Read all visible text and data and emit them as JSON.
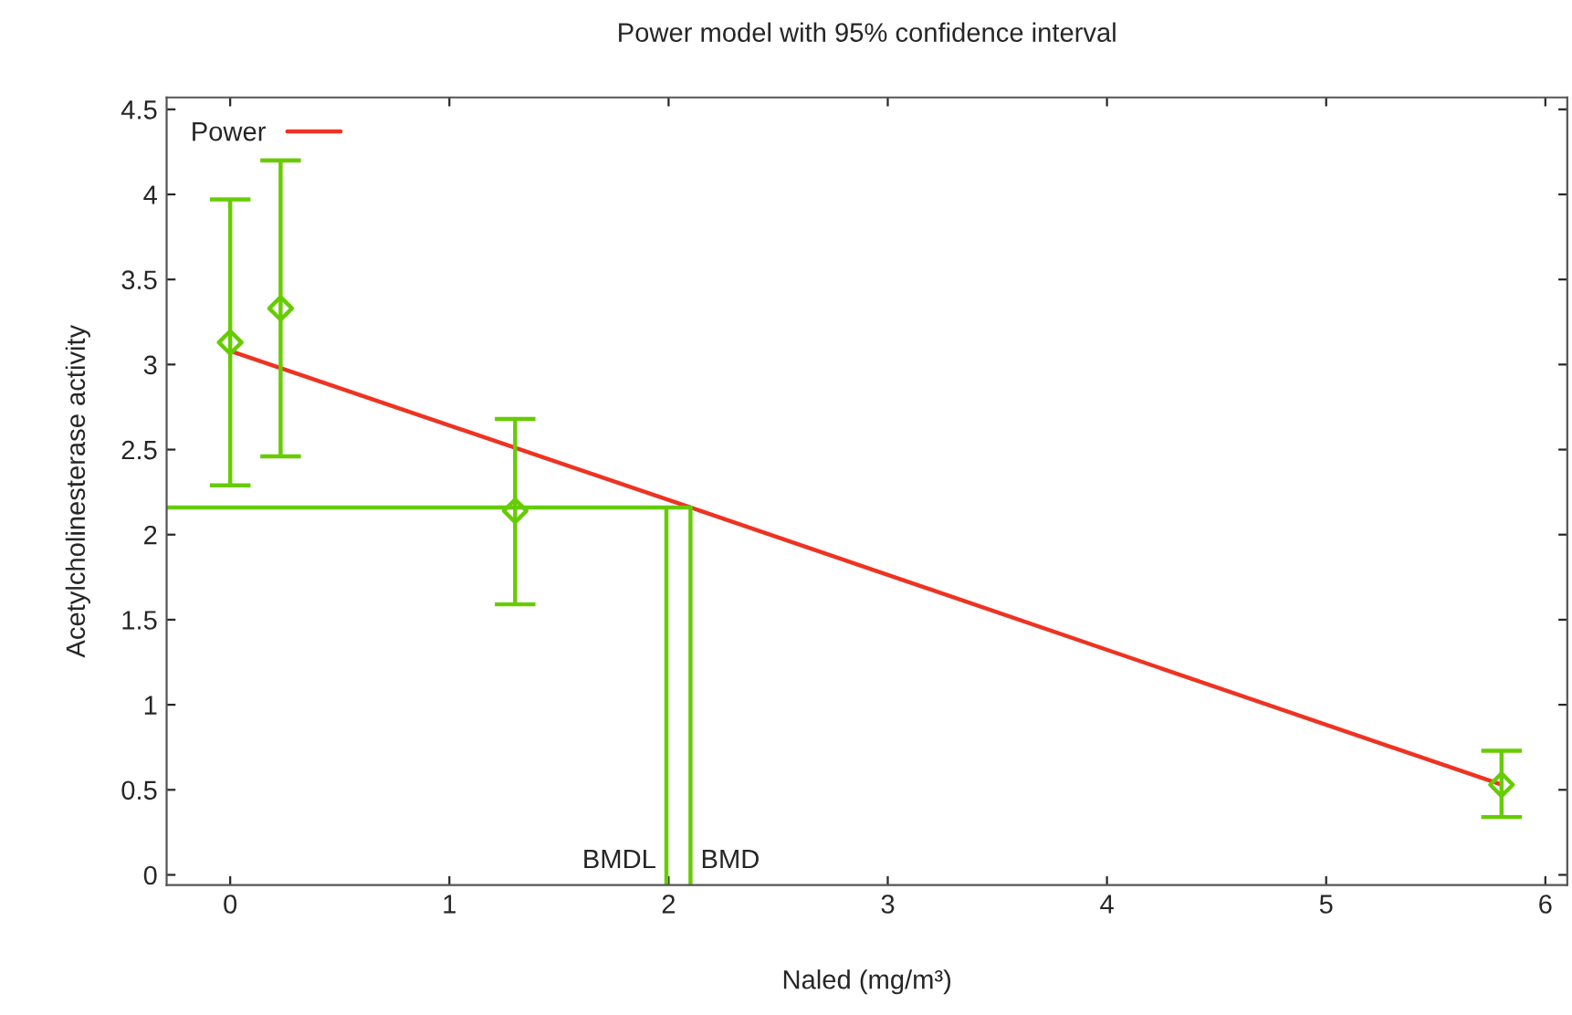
{
  "chart_data": {
    "type": "line",
    "title": "Power model with 95% confidence interval",
    "xlabel": "Naled (mg/m³)",
    "ylabel": "Acetylcholinesterase activity",
    "xlim": [
      -0.29,
      6.1
    ],
    "ylim": [
      -0.06,
      4.57
    ],
    "xticks": [
      0,
      1,
      2,
      3,
      4,
      5,
      6
    ],
    "yticks": [
      0,
      0.5,
      1,
      1.5,
      2,
      2.5,
      3,
      3.5,
      4,
      4.5
    ],
    "grid": false,
    "legend": "top left",
    "series": [
      {
        "name": "Power",
        "color": "#ee3322",
        "marker": "none",
        "x": [
          0,
          2.1,
          5.8
        ],
        "values": [
          3.08,
          2.16,
          0.53
        ]
      },
      {
        "type": "scatter",
        "color": "#66cc00",
        "marker": "diamond",
        "x": [
          0,
          0.23,
          1.3,
          5.8
        ],
        "values": [
          3.13,
          3.33,
          2.14,
          0.53
        ],
        "errors": [
          [
            2.29,
            3.97
          ],
          [
            2.46,
            4.2
          ],
          [
            1.59,
            2.68
          ],
          [
            0.34,
            0.73
          ]
        ]
      },
      {
        "color": "#66cc00",
        "marker": "none",
        "x": [
          -0.29,
          2.1
        ],
        "values": [
          2.16,
          2.16
        ]
      },
      {
        "color": "#66cc00",
        "marker": "none",
        "x": [
          1.99,
          1.99
        ],
        "values": [
          -0.06,
          2.16
        ]
      },
      {
        "color": "#66cc00",
        "marker": "none",
        "x": [
          2.1,
          2.1
        ],
        "values": [
          -0.06,
          2.16
        ]
      }
    ],
    "annotations": [
      {
        "text": "BMDL",
        "x": 1.99,
        "y": 0.08
      },
      {
        "text": "BMD",
        "x": 2.1,
        "y": 0.08
      }
    ]
  }
}
